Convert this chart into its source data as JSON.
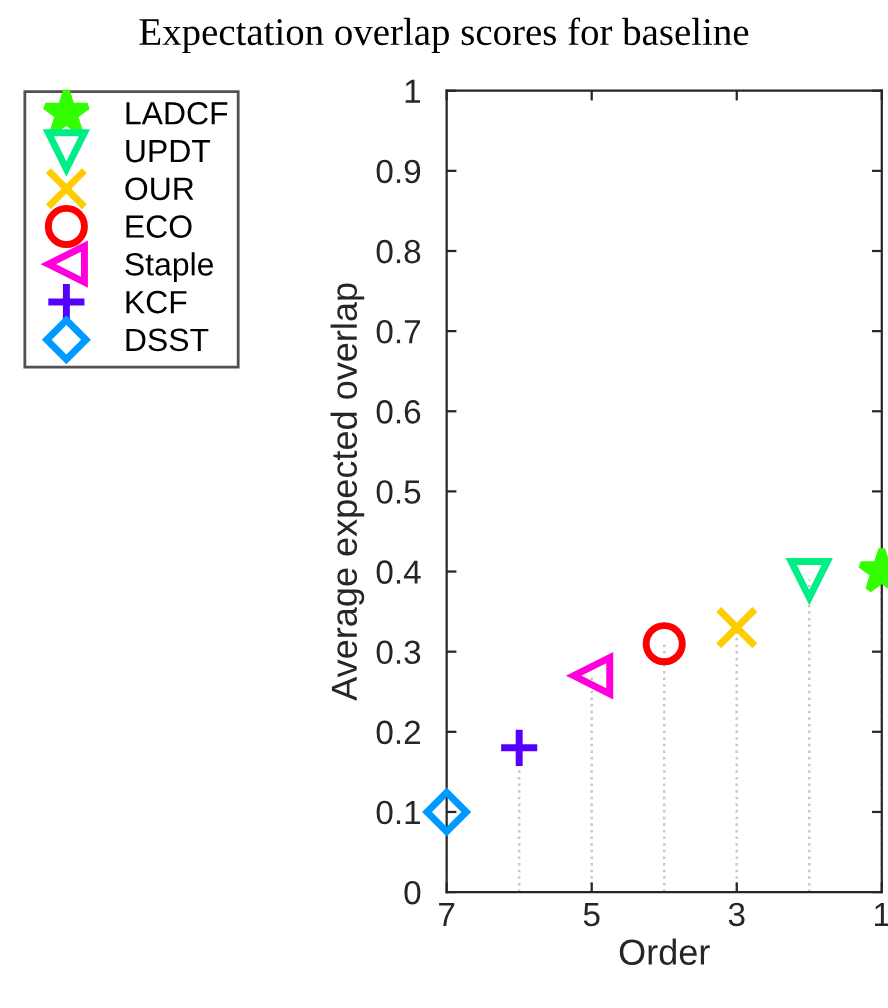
{
  "chart_data": {
    "type": "lollipop",
    "title": "Expectation overlap scores for baseline",
    "xlabel": "Order",
    "ylabel": "Average expected overlap",
    "xlim": [
      7,
      1
    ],
    "xticks": [
      7,
      5,
      3,
      1
    ],
    "ylim": [
      0,
      1
    ],
    "yticks": [
      0,
      0.1,
      0.2,
      0.3,
      0.4,
      0.5,
      0.6,
      0.7,
      0.8,
      0.9,
      1
    ],
    "legend": "top left",
    "grid": false,
    "line_style": "dotted",
    "series": [
      {
        "name": "LADCF",
        "color": "#33ff00",
        "marker": "asterisk",
        "x": [
          1
        ],
        "values": [
          0.4
        ]
      },
      {
        "name": "UPDT",
        "color": "#00ee88",
        "marker": "triangle-down",
        "x": [
          2
        ],
        "values": [
          0.39
        ]
      },
      {
        "name": "OUR",
        "color": "#ffcc00",
        "marker": "cross",
        "x": [
          3
        ],
        "values": [
          0.33
        ]
      },
      {
        "name": "ECO",
        "color": "#ff0000",
        "marker": "circle",
        "x": [
          4
        ],
        "values": [
          0.31
        ]
      },
      {
        "name": "Staple",
        "color": "#ff00dd",
        "marker": "triangle-left",
        "x": [
          5
        ],
        "values": [
          0.27
        ]
      },
      {
        "name": "KCF",
        "color": "#5500ff",
        "marker": "plus",
        "x": [
          6
        ],
        "values": [
          0.18
        ]
      },
      {
        "name": "DSST",
        "color": "#0099ff",
        "marker": "diamond",
        "x": [
          7
        ],
        "values": [
          0.1
        ]
      }
    ]
  }
}
